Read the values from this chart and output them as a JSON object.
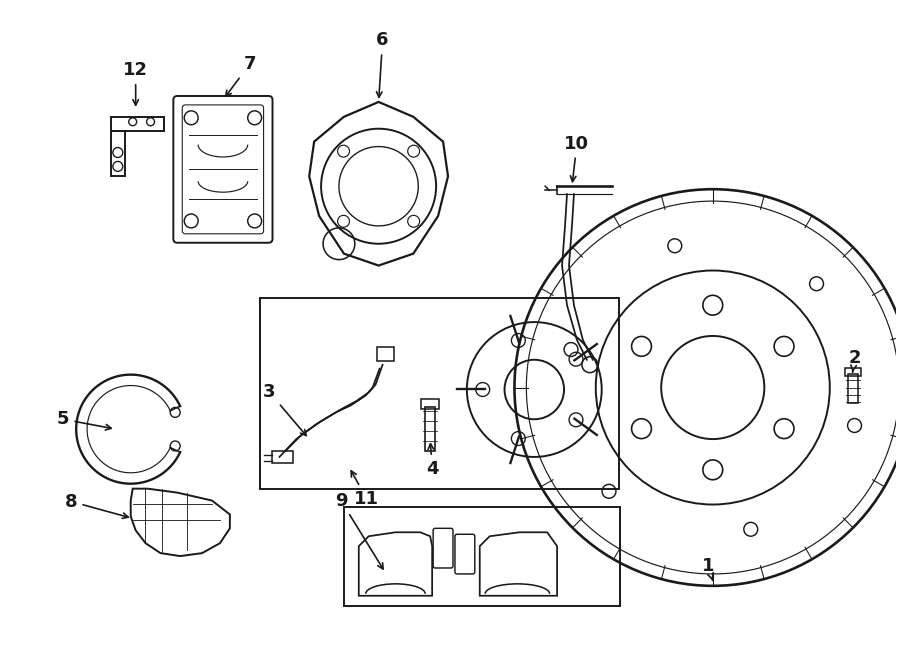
{
  "bg_color": "#ffffff",
  "line_color": "#1a1a1a",
  "fig_width": 9.0,
  "fig_height": 6.61,
  "dpi": 100,
  "lw": 1.4
}
